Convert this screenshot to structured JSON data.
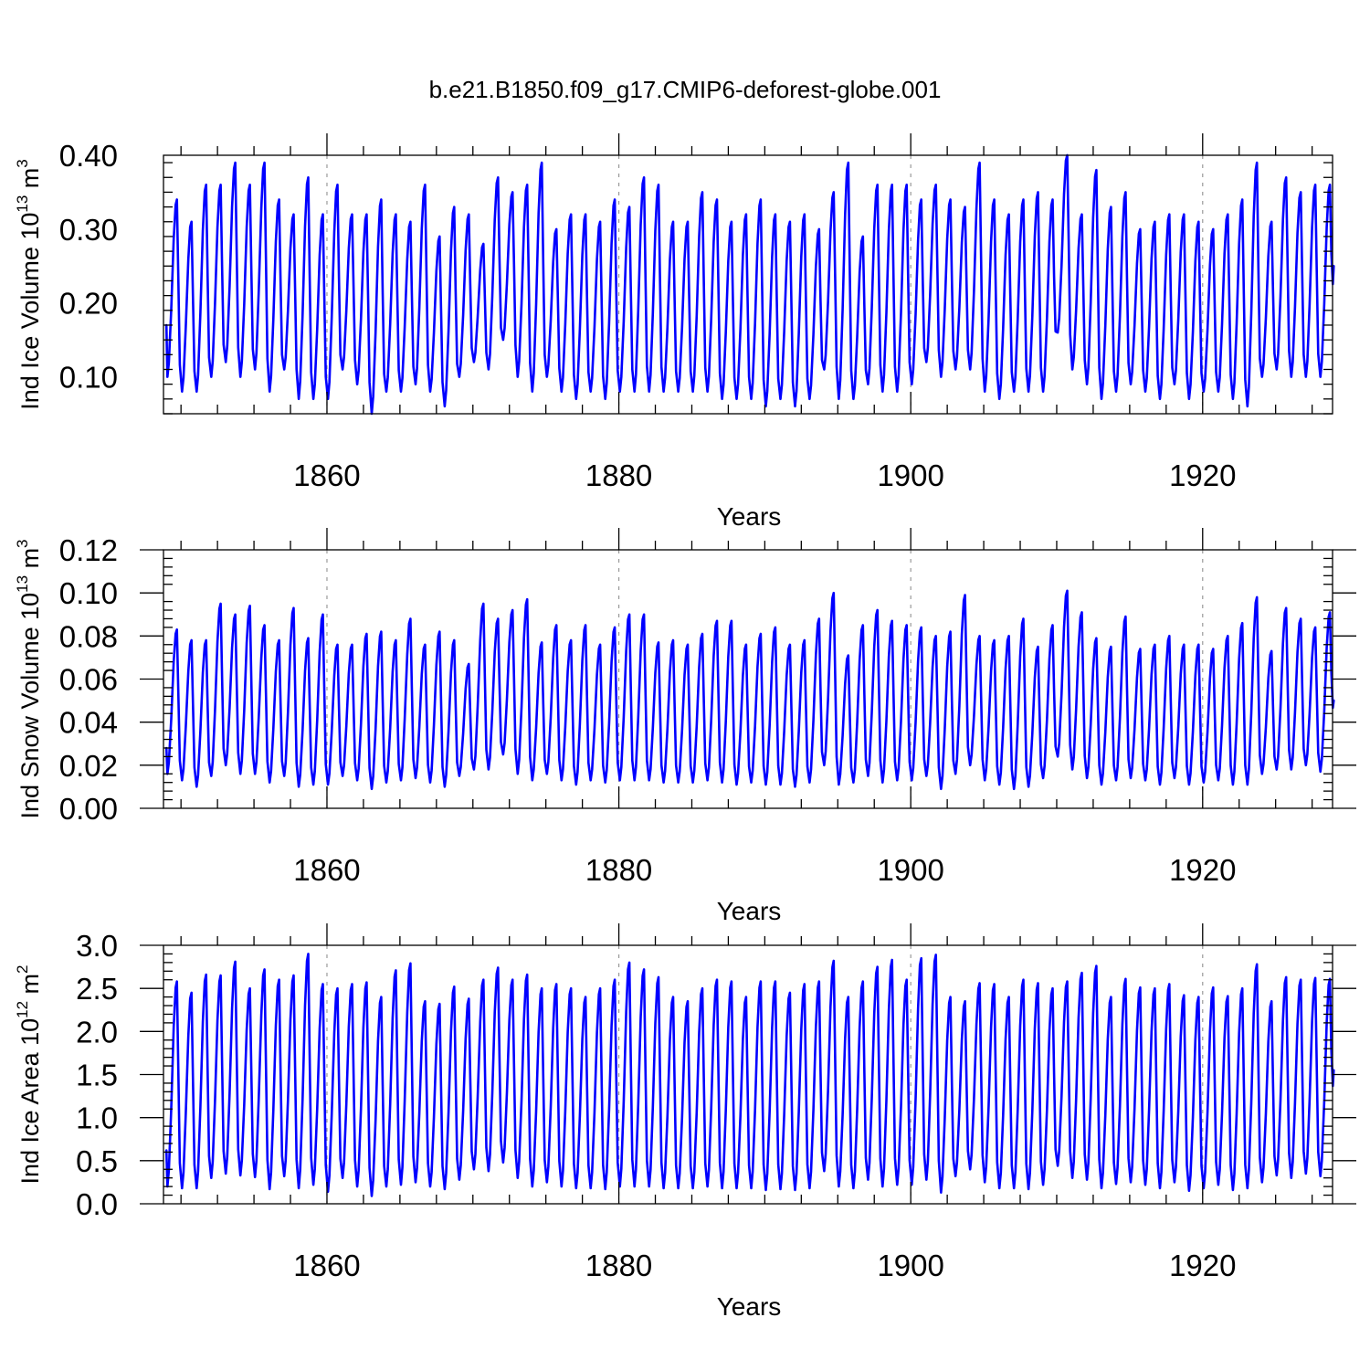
{
  "figure": {
    "title": "b.e21.B1850.f09_g17.CMIP6-deforest-globe.001"
  },
  "colors": {
    "line": "#0000ff",
    "axis": "#000000",
    "grid": "#9a9a9a"
  },
  "chart_data": [
    {
      "type": "line",
      "title": "",
      "xlabel": "Years",
      "ylabel": {
        "main": "Ind Ice Volume 10",
        "exponent": "13",
        "unit": " m",
        "unit_exponent": "3"
      },
      "xlim": [
        1848.8,
        1928.9
      ],
      "ylim": [
        0.05,
        0.4
      ],
      "x_ticks": [
        1860,
        1880,
        1900,
        1920
      ],
      "x_tick_labels": [
        "1860",
        "1880",
        "1900",
        "1920"
      ],
      "y_ticks": [
        0.1,
        0.2,
        0.3,
        0.4
      ],
      "y_tick_labels": [
        "0.10",
        "0.20",
        "0.30",
        "0.40"
      ],
      "grid": "dashed vertical at labeled x ticks",
      "series": [
        {
          "color": "#0000ff",
          "x_start": 1849.0,
          "x_step": 1,
          "start_value": 0.17,
          "end_value": 0.25,
          "annual_max": [
            0.34,
            0.31,
            0.36,
            0.36,
            0.39,
            0.36,
            0.39,
            0.34,
            0.32,
            0.37,
            0.32,
            0.36,
            0.32,
            0.32,
            0.34,
            0.32,
            0.31,
            0.36,
            0.29,
            0.33,
            0.32,
            0.28,
            0.37,
            0.35,
            0.36,
            0.39,
            0.3,
            0.32,
            0.32,
            0.31,
            0.34,
            0.33,
            0.37,
            0.36,
            0.31,
            0.31,
            0.35,
            0.34,
            0.31,
            0.32,
            0.34,
            0.32,
            0.31,
            0.32,
            0.3,
            0.35,
            0.39,
            0.29,
            0.36,
            0.36,
            0.36,
            0.34,
            0.36,
            0.34,
            0.33,
            0.39,
            0.34,
            0.32,
            0.34,
            0.35,
            0.34,
            0.4,
            0.32,
            0.38,
            0.33,
            0.35,
            0.3,
            0.31,
            0.32,
            0.32,
            0.31,
            0.3,
            0.32,
            0.34,
            0.39,
            0.31,
            0.37,
            0.35,
            0.36,
            0.36
          ],
          "annual_min": [
            0.1,
            0.08,
            0.08,
            0.1,
            0.12,
            0.1,
            0.11,
            0.08,
            0.11,
            0.07,
            0.07,
            0.07,
            0.11,
            0.09,
            0.05,
            0.08,
            0.08,
            0.09,
            0.08,
            0.06,
            0.1,
            0.12,
            0.11,
            0.15,
            0.1,
            0.08,
            0.1,
            0.08,
            0.07,
            0.08,
            0.07,
            0.08,
            0.08,
            0.08,
            0.08,
            0.08,
            0.08,
            0.08,
            0.07,
            0.07,
            0.07,
            0.06,
            0.07,
            0.06,
            0.07,
            0.11,
            0.07,
            0.07,
            0.09,
            0.08,
            0.08,
            0.09,
            0.12,
            0.1,
            0.11,
            0.11,
            0.08,
            0.07,
            0.08,
            0.08,
            0.08,
            0.16,
            0.11,
            0.09,
            0.07,
            0.08,
            0.09,
            0.08,
            0.07,
            0.09,
            0.07,
            0.08,
            0.08,
            0.07,
            0.06,
            0.1,
            0.11,
            0.1,
            0.1,
            0.1
          ]
        }
      ]
    },
    {
      "type": "line",
      "title": "",
      "xlabel": "Years",
      "ylabel": {
        "main": "Ind Snow Volume 10",
        "exponent": "13",
        "unit": " m",
        "unit_exponent": "3"
      },
      "xlim": [
        1848.8,
        1928.9
      ],
      "ylim": [
        0.0,
        0.12
      ],
      "x_ticks": [
        1860,
        1880,
        1900,
        1920
      ],
      "x_tick_labels": [
        "1860",
        "1880",
        "1900",
        "1920"
      ],
      "y_ticks": [
        0.0,
        0.02,
        0.04,
        0.06,
        0.08,
        0.1,
        0.12
      ],
      "y_tick_labels": [
        "0.00",
        "0.02",
        "0.04",
        "0.06",
        "0.08",
        "0.10",
        "0.12"
      ],
      "grid": "dashed vertical at labeled x ticks",
      "series": [
        {
          "color": "#0000ff",
          "x_start": 1849.0,
          "x_step": 1,
          "start_value": 0.028,
          "end_value": 0.05,
          "annual_max": [
            0.083,
            0.078,
            0.078,
            0.095,
            0.09,
            0.094,
            0.085,
            0.078,
            0.093,
            0.079,
            0.09,
            0.076,
            0.076,
            0.081,
            0.082,
            0.078,
            0.088,
            0.076,
            0.082,
            0.078,
            0.067,
            0.095,
            0.088,
            0.092,
            0.097,
            0.077,
            0.085,
            0.078,
            0.085,
            0.076,
            0.084,
            0.09,
            0.09,
            0.077,
            0.078,
            0.076,
            0.081,
            0.087,
            0.087,
            0.076,
            0.081,
            0.084,
            0.076,
            0.078,
            0.088,
            0.1,
            0.071,
            0.085,
            0.092,
            0.087,
            0.085,
            0.084,
            0.08,
            0.082,
            0.099,
            0.08,
            0.078,
            0.08,
            0.088,
            0.075,
            0.085,
            0.101,
            0.091,
            0.079,
            0.075,
            0.089,
            0.074,
            0.076,
            0.08,
            0.076,
            0.076,
            0.074,
            0.08,
            0.086,
            0.098,
            0.073,
            0.093,
            0.088,
            0.084,
            0.091
          ],
          "annual_min": [
            0.016,
            0.013,
            0.01,
            0.015,
            0.02,
            0.016,
            0.016,
            0.012,
            0.015,
            0.01,
            0.011,
            0.011,
            0.015,
            0.013,
            0.009,
            0.012,
            0.013,
            0.014,
            0.012,
            0.01,
            0.015,
            0.018,
            0.018,
            0.025,
            0.016,
            0.013,
            0.016,
            0.013,
            0.011,
            0.013,
            0.012,
            0.013,
            0.013,
            0.013,
            0.012,
            0.012,
            0.012,
            0.013,
            0.012,
            0.011,
            0.012,
            0.011,
            0.011,
            0.01,
            0.012,
            0.02,
            0.011,
            0.012,
            0.015,
            0.012,
            0.013,
            0.013,
            0.015,
            0.009,
            0.016,
            0.02,
            0.013,
            0.011,
            0.009,
            0.01,
            0.014,
            0.024,
            0.018,
            0.014,
            0.011,
            0.013,
            0.014,
            0.013,
            0.011,
            0.014,
            0.011,
            0.012,
            0.013,
            0.011,
            0.011,
            0.016,
            0.018,
            0.018,
            0.02,
            0.017
          ]
        }
      ]
    },
    {
      "type": "line",
      "title": "",
      "xlabel": "Years",
      "ylabel": {
        "main": "Ind Ice Area 10",
        "exponent": "12",
        "unit": " m",
        "unit_exponent": "2"
      },
      "xlim": [
        1848.8,
        1928.9
      ],
      "ylim": [
        0.0,
        3.0
      ],
      "x_ticks": [
        1860,
        1880,
        1900,
        1920
      ],
      "x_tick_labels": [
        "1860",
        "1880",
        "1900",
        "1920"
      ],
      "y_ticks": [
        0.0,
        0.5,
        1.0,
        1.5,
        2.0,
        2.5,
        3.0
      ],
      "y_tick_labels": [
        "0.0",
        "0.5",
        "1.0",
        "1.5",
        "2.0",
        "2.5",
        "3.0"
      ],
      "grid": "dashed vertical at labeled x ticks",
      "series": [
        {
          "color": "#0000ff",
          "x_start": 1849.0,
          "x_step": 1,
          "start_value": 0.62,
          "end_value": 1.55,
          "annual_max": [
            2.58,
            2.45,
            2.66,
            2.65,
            2.81,
            2.5,
            2.72,
            2.6,
            2.65,
            2.9,
            2.55,
            2.5,
            2.55,
            2.57,
            2.4,
            2.71,
            2.79,
            2.35,
            2.32,
            2.52,
            2.38,
            2.6,
            2.74,
            2.6,
            2.66,
            2.5,
            2.55,
            2.5,
            2.4,
            2.5,
            2.6,
            2.8,
            2.72,
            2.63,
            2.4,
            2.35,
            2.5,
            2.6,
            2.58,
            2.4,
            2.58,
            2.58,
            2.45,
            2.55,
            2.58,
            2.82,
            2.4,
            2.58,
            2.75,
            2.83,
            2.6,
            2.85,
            2.89,
            2.4,
            2.35,
            2.56,
            2.55,
            2.4,
            2.6,
            2.56,
            2.5,
            2.58,
            2.68,
            2.76,
            2.4,
            2.61,
            2.51,
            2.5,
            2.55,
            2.42,
            2.4,
            2.51,
            2.41,
            2.5,
            2.78,
            2.35,
            2.63,
            2.6,
            2.62,
            2.61
          ],
          "annual_min": [
            0.2,
            0.18,
            0.18,
            0.3,
            0.35,
            0.33,
            0.31,
            0.17,
            0.32,
            0.18,
            0.22,
            0.14,
            0.3,
            0.2,
            0.09,
            0.2,
            0.22,
            0.25,
            0.2,
            0.17,
            0.28,
            0.4,
            0.38,
            0.48,
            0.3,
            0.2,
            0.25,
            0.2,
            0.18,
            0.18,
            0.17,
            0.2,
            0.2,
            0.2,
            0.18,
            0.18,
            0.18,
            0.2,
            0.18,
            0.18,
            0.18,
            0.16,
            0.17,
            0.16,
            0.18,
            0.38,
            0.2,
            0.18,
            0.28,
            0.2,
            0.22,
            0.22,
            0.28,
            0.13,
            0.32,
            0.4,
            0.25,
            0.18,
            0.18,
            0.17,
            0.22,
            0.44,
            0.3,
            0.28,
            0.18,
            0.23,
            0.25,
            0.22,
            0.18,
            0.25,
            0.15,
            0.18,
            0.22,
            0.16,
            0.18,
            0.25,
            0.33,
            0.3,
            0.35,
            0.32
          ]
        }
      ]
    }
  ]
}
